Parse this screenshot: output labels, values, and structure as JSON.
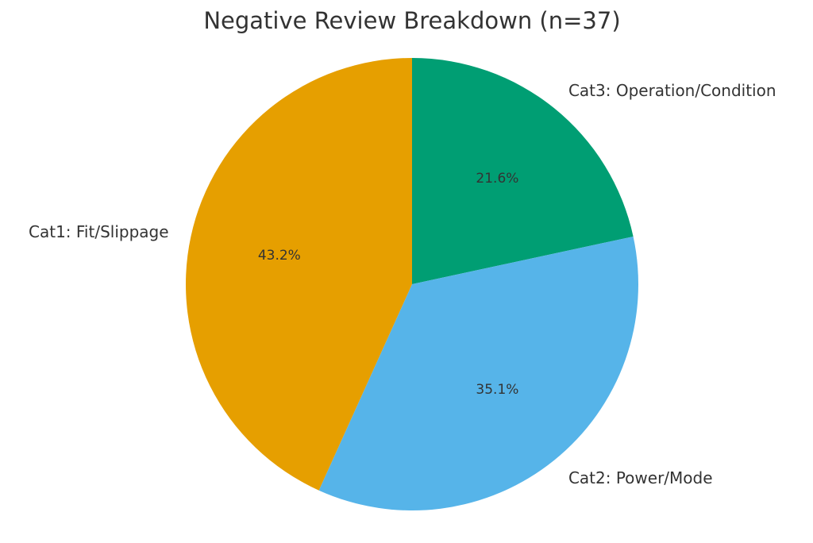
{
  "chart_data": {
    "type": "pie",
    "title": "Negative Review Breakdown (n=37)",
    "start_angle_deg": 90,
    "direction": "clockwise",
    "slices": [
      {
        "label": "Cat3: Operation/Condition",
        "value": 21.6,
        "pct_label": "21.6%",
        "color": "#009E73"
      },
      {
        "label": "Cat2: Power/Mode",
        "value": 35.1,
        "pct_label": "35.1%",
        "color": "#56B4E9"
      },
      {
        "label": "Cat1: Fit/Slippage",
        "value": 43.2,
        "pct_label": "43.2%",
        "color": "#E69F00"
      }
    ]
  }
}
